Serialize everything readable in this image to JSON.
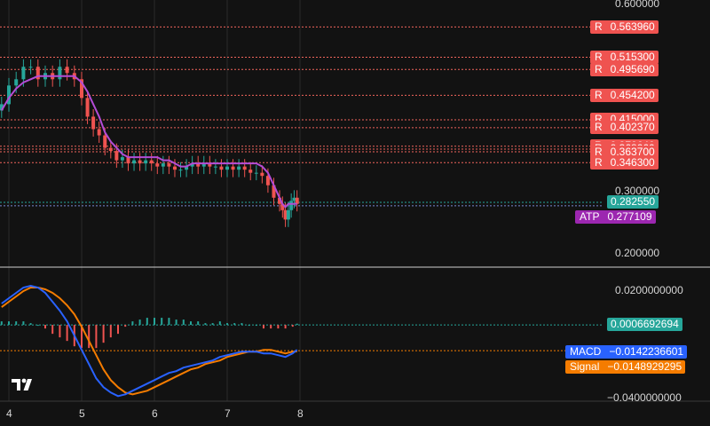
{
  "colors": {
    "background": "#121212",
    "grid": "#2a2a2a",
    "up": "#26a69a",
    "down": "#ef5350",
    "ma": "#b34cd6",
    "macd": "#2962ff",
    "signal": "#f57c00",
    "resistance": "#f0645c",
    "current": "#26a69a",
    "atp": "#9c27b0",
    "separator": "#d0d0d0"
  },
  "price_axis": {
    "ticks": [
      "0.600000",
      "0.300000",
      "0.200000"
    ],
    "range": [
      0.18,
      0.61
    ]
  },
  "macd_axis": {
    "ticks": [
      "0.0200000000",
      "−0.0400000000"
    ],
    "range": [
      -0.04,
      0.027
    ]
  },
  "x_axis": {
    "ticks": [
      "4",
      "5",
      "6",
      "7",
      "8"
    ]
  },
  "resistance_levels": [
    {
      "tag": "R",
      "value": "0.563960"
    },
    {
      "tag": "R",
      "value": "0.515300"
    },
    {
      "tag": "R",
      "value": "0.495690"
    },
    {
      "tag": "R",
      "value": "0.454200"
    },
    {
      "tag": "R",
      "value": "0.415000"
    },
    {
      "tag": "R",
      "value": "0.402370"
    },
    {
      "tag": "R",
      "value": "0.372640"
    },
    {
      "tag": "R",
      "value": "0.368060"
    },
    {
      "tag": "R",
      "value": "0.363700"
    },
    {
      "tag": "R",
      "value": "0.346300"
    }
  ],
  "current_price": "0.282550",
  "atp": {
    "label": "ATP",
    "value": "0.277109"
  },
  "macd_labels": {
    "histogram": "0.0006692694",
    "macd_label": "MACD",
    "macd_value": "−0.0142236601",
    "signal_label": "Signal",
    "signal_value": "−0.0148929295"
  },
  "chart_data": [
    {
      "type": "candlestick",
      "x": [
        3.9,
        4.0,
        4.1,
        4.2,
        4.3,
        4.4,
        4.5,
        4.6,
        4.7,
        4.8,
        4.9,
        5.0,
        5.08,
        5.16,
        5.24,
        5.32,
        5.4,
        5.48,
        5.56,
        5.64,
        5.72,
        5.8,
        5.88,
        5.96,
        6.04,
        6.12,
        6.2,
        6.28,
        6.36,
        6.44,
        6.52,
        6.6,
        6.68,
        6.76,
        6.84,
        6.92,
        7.0,
        7.08,
        7.16,
        7.24,
        7.32,
        7.4,
        7.48,
        7.56,
        7.64,
        7.72,
        7.76,
        7.8,
        7.84,
        7.88,
        7.92,
        7.96
      ],
      "close": [
        0.44,
        0.47,
        0.48,
        0.5,
        0.5,
        0.48,
        0.49,
        0.48,
        0.5,
        0.49,
        0.48,
        0.45,
        0.42,
        0.4,
        0.39,
        0.37,
        0.365,
        0.35,
        0.355,
        0.345,
        0.35,
        0.345,
        0.35,
        0.345,
        0.34,
        0.345,
        0.34,
        0.335,
        0.335,
        0.34,
        0.345,
        0.34,
        0.345,
        0.34,
        0.34,
        0.335,
        0.34,
        0.335,
        0.34,
        0.335,
        0.33,
        0.33,
        0.325,
        0.31,
        0.29,
        0.28,
        0.27,
        0.255,
        0.27,
        0.285,
        0.29,
        0.28
      ],
      "ma_line": [
        0.43,
        0.45,
        0.465,
        0.475,
        0.48,
        0.485,
        0.485,
        0.485,
        0.485,
        0.485,
        0.485,
        0.475,
        0.46,
        0.44,
        0.42,
        0.395,
        0.38,
        0.37,
        0.36,
        0.355,
        0.355,
        0.355,
        0.355,
        0.355,
        0.355,
        0.35,
        0.35,
        0.345,
        0.34,
        0.34,
        0.345,
        0.345,
        0.345,
        0.345,
        0.345,
        0.345,
        0.345,
        0.345,
        0.345,
        0.345,
        0.345,
        0.345,
        0.34,
        0.33,
        0.31,
        0.29,
        0.28,
        0.275,
        0.28,
        0.28,
        0.28,
        0.28
      ],
      "resistance": [
        0.56396,
        0.5153,
        0.49569,
        0.4542,
        0.415,
        0.40237,
        0.37264,
        0.36806,
        0.3637,
        0.3463
      ],
      "current": 0.28255,
      "atp": 0.277109
    },
    {
      "type": "macd",
      "x": [
        3.9,
        4.0,
        4.1,
        4.2,
        4.3,
        4.4,
        4.5,
        4.6,
        4.7,
        4.8,
        4.9,
        5.0,
        5.1,
        5.2,
        5.3,
        5.4,
        5.5,
        5.6,
        5.7,
        5.8,
        5.9,
        6.0,
        6.1,
        6.2,
        6.3,
        6.4,
        6.5,
        6.6,
        6.7,
        6.8,
        6.9,
        7.0,
        7.1,
        7.2,
        7.3,
        7.4,
        7.5,
        7.6,
        7.7,
        7.8,
        7.9,
        7.96
      ],
      "macd": [
        0.012,
        0.015,
        0.018,
        0.021,
        0.022,
        0.021,
        0.018,
        0.013,
        0.008,
        0.002,
        -0.006,
        -0.014,
        -0.022,
        -0.03,
        -0.035,
        -0.038,
        -0.04,
        -0.039,
        -0.037,
        -0.035,
        -0.033,
        -0.031,
        -0.029,
        -0.027,
        -0.026,
        -0.024,
        -0.023,
        -0.022,
        -0.021,
        -0.02,
        -0.018,
        -0.017,
        -0.016,
        -0.015,
        -0.015,
        -0.015,
        -0.016,
        -0.016,
        -0.017,
        -0.018,
        -0.016,
        -0.014
      ],
      "signal": [
        0.01,
        0.013,
        0.016,
        0.019,
        0.021,
        0.021,
        0.02,
        0.018,
        0.015,
        0.011,
        0.006,
        -0.001,
        -0.009,
        -0.017,
        -0.025,
        -0.031,
        -0.035,
        -0.038,
        -0.039,
        -0.038,
        -0.037,
        -0.035,
        -0.033,
        -0.031,
        -0.029,
        -0.027,
        -0.025,
        -0.024,
        -0.022,
        -0.021,
        -0.02,
        -0.018,
        -0.017,
        -0.016,
        -0.015,
        -0.015,
        -0.014,
        -0.014,
        -0.015,
        -0.016,
        -0.015,
        -0.0149
      ],
      "histogram": [
        0.002,
        0.002,
        0.002,
        0.002,
        0.001,
        0.0,
        -0.002,
        -0.005,
        -0.007,
        -0.009,
        -0.012,
        -0.013,
        -0.013,
        -0.013,
        -0.01,
        -0.007,
        -0.005,
        -0.001,
        0.002,
        0.003,
        0.004,
        0.004,
        0.004,
        0.004,
        0.003,
        0.003,
        0.002,
        0.002,
        0.001,
        0.001,
        0.002,
        0.001,
        0.001,
        0.001,
        0.0,
        0.0,
        -0.002,
        -0.002,
        -0.002,
        -0.002,
        -0.001,
        0.0007
      ]
    }
  ]
}
